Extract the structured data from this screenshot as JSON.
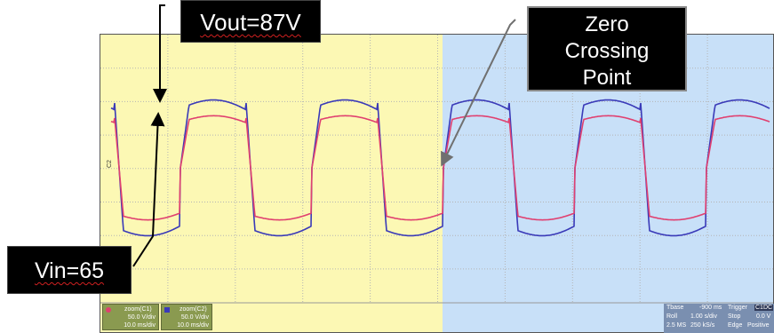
{
  "annotations": {
    "vout_label": "Vout=87V",
    "vin_label": "Vin=65",
    "zero_crossing_line1": "Zero",
    "zero_crossing_line2": "Crossing",
    "zero_crossing_line3": "Point"
  },
  "scope": {
    "axis_marker": "C2",
    "colors": {
      "left_bg": "#fcf8b4",
      "right_bg": "#c8e0f8",
      "vout_trace": "#3a3ab8",
      "vin_trace": "#e04070",
      "grid": "#b4b4b4"
    }
  },
  "status_bar": {
    "ch1": {
      "name": "zoom(C1)",
      "vdiv": "50.0 V/div",
      "tdiv": "10.0 ms/div"
    },
    "ch2": {
      "name": "zoom(C2)",
      "vdiv": "50.0 V/div",
      "tdiv": "10.0 ms/div"
    },
    "timebase": {
      "tbase_label": "Tbase",
      "tbase_value": "-900 ms",
      "trigger_label": "Trigger",
      "trigger_chip": "C1DC",
      "roll_label": "Roll",
      "roll_value": "1.00 s/div",
      "stop_label": "Stop",
      "stop_value": "0.0 V",
      "samples": "2.5 MS",
      "rate": "250 kS/s",
      "edge_label": "Edge",
      "edge_value": "Positive"
    }
  }
}
